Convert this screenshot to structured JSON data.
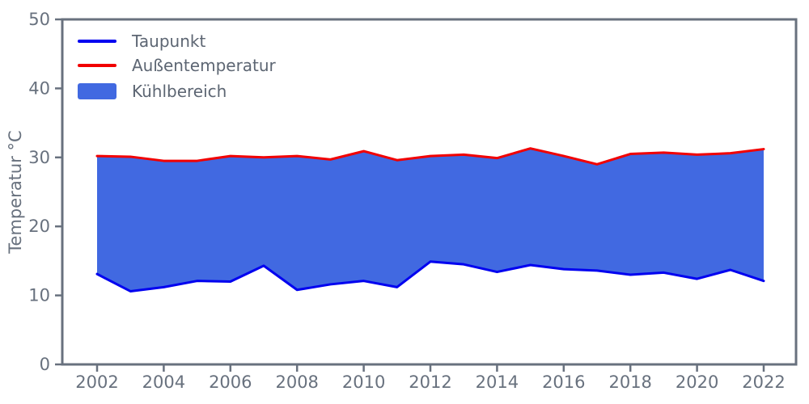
{
  "figure": {
    "ylabel": "Temperatur °C",
    "background": "#ffffff",
    "axis_color": "#68717e",
    "tick_label_color": "#68717e"
  },
  "legend": {
    "position": "upper-left",
    "items": [
      {
        "label": "Taupunkt",
        "swatch": "line",
        "color": "#0000f0"
      },
      {
        "label": "Außentemperatur",
        "swatch": "line",
        "color": "#f10000"
      },
      {
        "label": "Kühlbereich",
        "swatch": "patch",
        "color": "#4169e1"
      }
    ]
  },
  "chart_data": {
    "type": "area",
    "title": "",
    "xlabel": "",
    "ylabel": "Temperatur °C",
    "grid": false,
    "legend_position": "upper-left",
    "x": [
      2002,
      2003,
      2004,
      2005,
      2006,
      2007,
      2008,
      2009,
      2010,
      2011,
      2012,
      2013,
      2014,
      2015,
      2016,
      2017,
      2018,
      2019,
      2020,
      2021,
      2022
    ],
    "series": [
      {
        "name": "Taupunkt",
        "color": "#0000f0",
        "values": [
          13.1,
          10.6,
          11.2,
          12.1,
          12.0,
          14.3,
          10.8,
          11.6,
          12.1,
          11.2,
          14.9,
          14.5,
          13.4,
          14.4,
          13.8,
          13.6,
          13.0,
          13.3,
          12.4,
          13.7,
          12.1
        ]
      },
      {
        "name": "Außentemperatur",
        "color": "#f10000",
        "values": [
          30.2,
          30.1,
          29.5,
          29.5,
          30.2,
          30.0,
          30.2,
          29.7,
          30.9,
          29.6,
          30.2,
          30.4,
          29.9,
          31.3,
          30.2,
          29.0,
          30.5,
          30.7,
          30.4,
          30.6,
          31.2
        ]
      }
    ],
    "fill_between": {
      "name": "Kühlbereich",
      "upper": "Außentemperatur",
      "lower": "Taupunkt",
      "color": "#4169e1"
    },
    "ylim": [
      0,
      50
    ],
    "x_ticks": [
      2002,
      2004,
      2006,
      2008,
      2010,
      2012,
      2014,
      2016,
      2018,
      2020,
      2022
    ],
    "y_ticks": [
      0,
      10,
      20,
      30,
      40,
      50
    ]
  }
}
